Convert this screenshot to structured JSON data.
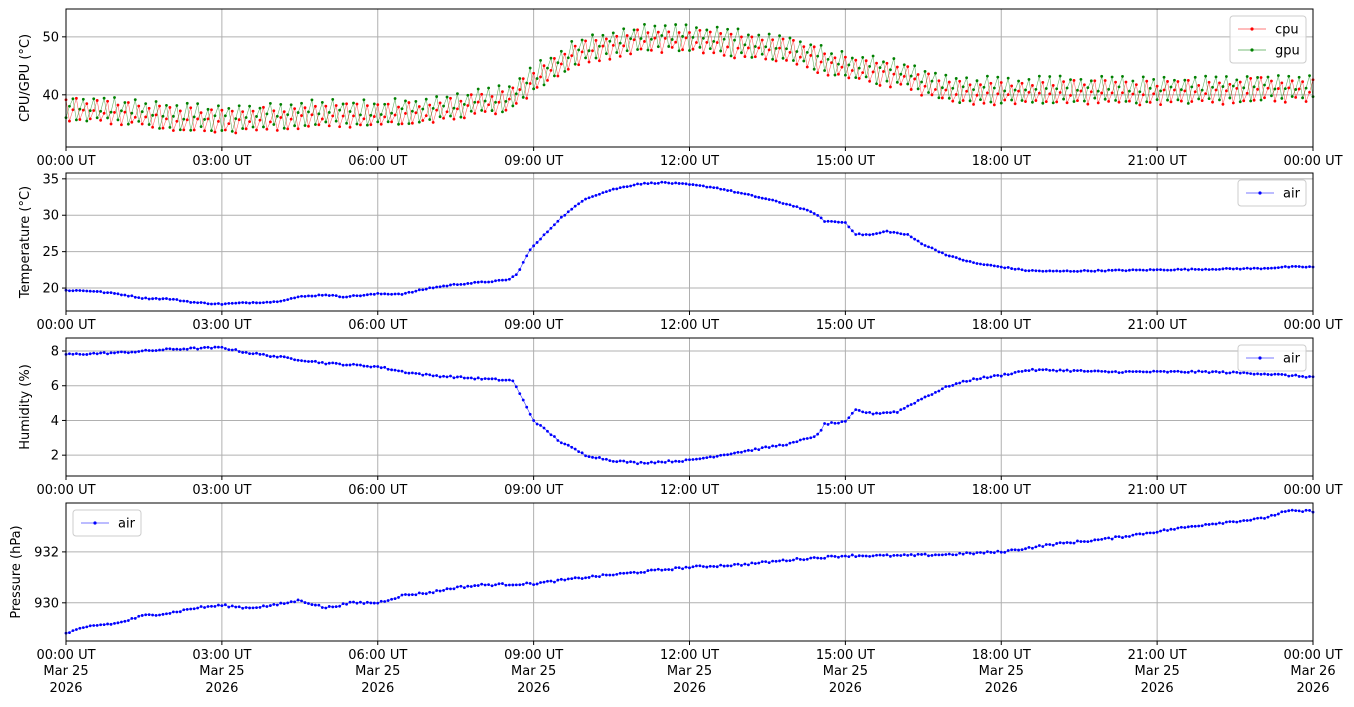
{
  "chart_data": [
    {
      "type": "line",
      "ylabel": "CPU/GPU (°C)",
      "ylim": [
        31,
        54.8
      ],
      "yticks": [
        40,
        50
      ],
      "legend": "top-right",
      "grid": true,
      "series": [
        {
          "name": "cpu",
          "color": "#ff0000",
          "offset_hi": 2.0,
          "offset_lo": -1.3
        },
        {
          "name": "gpu",
          "color": "#008000",
          "offset_hi": 2.8,
          "offset_lo": -1.0
        }
      ],
      "base_hours": [
        0,
        1,
        2,
        3,
        4,
        5,
        6,
        7,
        8,
        8.5,
        9,
        9.5,
        10,
        11,
        12,
        13,
        14,
        15,
        16,
        17,
        18,
        19,
        20,
        21,
        22,
        23,
        24
      ],
      "base_values": [
        37,
        36.5,
        35.5,
        35,
        35.5,
        36,
        36,
        36.5,
        38,
        38.5,
        42,
        45,
        47,
        49,
        49,
        48,
        47,
        44,
        43,
        40,
        40,
        40,
        40,
        40,
        40,
        40.5,
        40.5
      ]
    },
    {
      "type": "line",
      "ylabel": "Temperature (°C)",
      "ylim": [
        16.85,
        35.8
      ],
      "yticks": [
        20,
        25,
        30,
        35
      ],
      "legend": "top-right",
      "grid": true,
      "series": [
        {
          "name": "air",
          "color": "#0000ff"
        }
      ],
      "hours": [
        0,
        0.5,
        1,
        1.5,
        2,
        2.5,
        3,
        3.5,
        4,
        4.5,
        5,
        5.3,
        5.7,
        6,
        6.5,
        7,
        7.5,
        8,
        8.5,
        8.7,
        8.9,
        9.5,
        10,
        10.5,
        11,
        11.5,
        12,
        12.5,
        13,
        13.5,
        14,
        14.4,
        14.6,
        15,
        15.2,
        15.5,
        15.8,
        16.2,
        16.5,
        17,
        17.5,
        18,
        18.5,
        19,
        20,
        21,
        22,
        23,
        23.5,
        24
      ],
      "values": [
        19.7,
        19.6,
        19.2,
        18.6,
        18.5,
        18.0,
        17.8,
        18.0,
        18.1,
        18.8,
        19.1,
        18.8,
        19.0,
        19.2,
        19.2,
        20.0,
        20.5,
        20.8,
        21.1,
        22.0,
        25.0,
        29.5,
        32.3,
        33.5,
        34.3,
        34.5,
        34.2,
        33.8,
        33.0,
        32.2,
        31.3,
        30.3,
        29.2,
        29.0,
        27.4,
        27.3,
        27.8,
        27.3,
        26.0,
        24.4,
        23.4,
        22.9,
        22.4,
        22.3,
        22.4,
        22.5,
        22.6,
        22.7,
        22.9,
        22.9
      ],
      "noise": 0.08
    },
    {
      "type": "line",
      "ylabel": "Humidity (%)",
      "ylim": [
        0.8,
        8.75
      ],
      "yticks": [
        2,
        4,
        6,
        8
      ],
      "legend": "top-right",
      "grid": true,
      "series": [
        {
          "name": "air",
          "color": "#0000ff"
        }
      ],
      "hours": [
        0,
        1,
        2,
        3,
        3.5,
        4,
        5,
        6,
        6.5,
        7,
        8,
        8.6,
        9,
        9.5,
        10,
        10.5,
        11,
        12,
        13,
        14,
        14.5,
        14.6,
        15,
        15.2,
        15.5,
        16,
        16.5,
        17,
        17.5,
        18,
        18.5,
        19,
        20,
        21,
        22,
        23,
        24
      ],
      "values": [
        7.8,
        7.9,
        8.1,
        8.2,
        7.9,
        7.7,
        7.3,
        7.1,
        6.8,
        6.6,
        6.4,
        6.3,
        4.0,
        2.8,
        2.0,
        1.7,
        1.55,
        1.7,
        2.2,
        2.7,
        3.2,
        3.8,
        3.9,
        4.6,
        4.4,
        4.5,
        5.3,
        6.0,
        6.4,
        6.6,
        6.9,
        6.9,
        6.8,
        6.8,
        6.8,
        6.7,
        6.5
      ],
      "noise": 0.05
    },
    {
      "type": "line",
      "ylabel": "Pressure (hPa)",
      "ylim": [
        928.5,
        933.92
      ],
      "yticks": [
        930,
        932
      ],
      "legend": "top-left",
      "grid": true,
      "series": [
        {
          "name": "air",
          "color": "#0000ff"
        }
      ],
      "hours": [
        0,
        0.5,
        1,
        1.5,
        2,
        2.5,
        3,
        3.5,
        4,
        4.5,
        5,
        5.5,
        6,
        6.5,
        7,
        7.5,
        8,
        9,
        10,
        11,
        12,
        13,
        14,
        15,
        16,
        17,
        18,
        19,
        20,
        21,
        22,
        23,
        23.5,
        24
      ],
      "values": [
        928.8,
        929.1,
        929.2,
        929.5,
        929.6,
        929.8,
        929.9,
        929.8,
        929.9,
        930.1,
        929.8,
        930.0,
        930.0,
        930.3,
        930.4,
        930.6,
        930.7,
        930.75,
        931.0,
        931.2,
        931.4,
        931.5,
        931.7,
        931.85,
        931.85,
        931.9,
        932.0,
        932.3,
        932.5,
        932.8,
        933.1,
        933.3,
        933.6,
        933.6
      ],
      "noise": 0.04
    }
  ],
  "x_axis": {
    "range_hours": [
      0,
      24
    ],
    "tick_labels": [
      "00:00 UT",
      "03:00 UT",
      "06:00 UT",
      "09:00 UT",
      "12:00 UT",
      "15:00 UT",
      "18:00 UT",
      "21:00 UT",
      "00:00 UT"
    ],
    "date_lines": [
      "Mar 25",
      "Mar 25",
      "Mar 25",
      "Mar 25",
      "Mar 25",
      "Mar 25",
      "Mar 25",
      "Mar 25",
      "Mar 26"
    ],
    "year_lines": [
      "2026",
      "2026",
      "2026",
      "2026",
      "2026",
      "2026",
      "2026",
      "2026",
      "2026"
    ]
  }
}
